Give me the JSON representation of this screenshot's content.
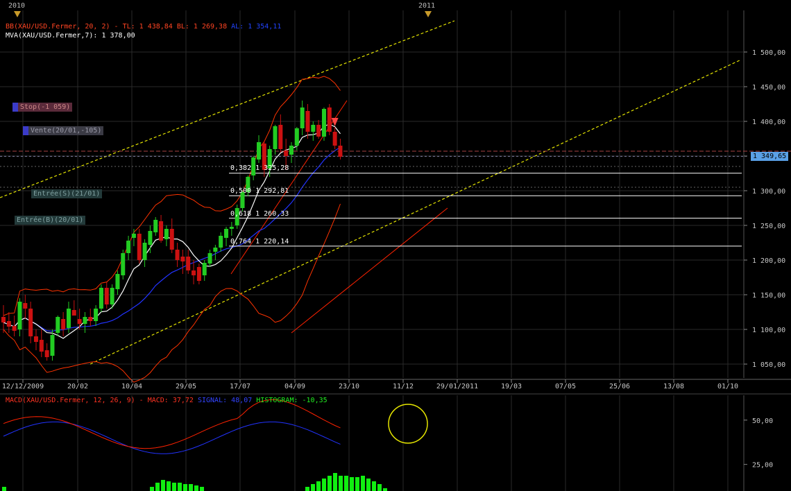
{
  "chart_data": [
    {
      "type": "candlestick",
      "instrument": "XAU/USD",
      "ylim": [
        1030,
        1560
      ],
      "y_ticks": [
        "1 500,00",
        "1 450,00",
        "1 400,00",
        "1 350,00",
        "1 300,00",
        "1 250,00",
        "1 200,00",
        "1 150,00",
        "1 100,00",
        "1 050,00"
      ],
      "y_tick_values": [
        1500,
        1450,
        1400,
        1350,
        1300,
        1250,
        1200,
        1150,
        1100,
        1050
      ],
      "x_ticks": [
        "12/12/2009",
        "20/02",
        "10/04",
        "29/05",
        "17/07",
        "04/09",
        "23/10",
        "11/12",
        "29/01/2011",
        "19/03",
        "07/05",
        "25/06",
        "13/08",
        "01/10"
      ],
      "year_markers": [
        "2010",
        "2011"
      ],
      "last_price_label": "1 349,65",
      "last_price": 1349.65,
      "legend_bb": {
        "prefix": "BB(XAU/USD.Fermer, 20, 2) - TL: 1 438,84  BL: 1 269,38",
        "al": "AL: 1 354,11"
      },
      "legend_mva": "MVA(XAU/USD.Fermer,7): 1 378,00",
      "fib_levels": [
        {
          "label": "0,382 1 325,28",
          "value": 1325.28
        },
        {
          "label": "0,500 1 292,81",
          "value": 1292.81
        },
        {
          "label": "0,618 1 260,33",
          "value": 1260.33
        },
        {
          "label": "0,764 1 220,14",
          "value": 1220.14
        }
      ],
      "orders": [
        {
          "label": "Stop(-1 059)",
          "kind": "stop"
        },
        {
          "label": "Vente(20/01,-105)",
          "kind": "sell"
        },
        {
          "label": "Entrée(S)(21/01)",
          "kind": "entry"
        },
        {
          "label": "Entrée(B)(20/01)",
          "kind": "entry"
        }
      ],
      "candles": [
        {
          "o": 1118,
          "h": 1135,
          "l": 1095,
          "c": 1110
        },
        {
          "o": 1112,
          "h": 1125,
          "l": 1095,
          "c": 1104
        },
        {
          "o": 1105,
          "h": 1120,
          "l": 1090,
          "c": 1098
        },
        {
          "o": 1100,
          "h": 1145,
          "l": 1090,
          "c": 1140
        },
        {
          "o": 1138,
          "h": 1150,
          "l": 1115,
          "c": 1130
        },
        {
          "o": 1130,
          "h": 1140,
          "l": 1080,
          "c": 1090
        },
        {
          "o": 1090,
          "h": 1100,
          "l": 1070,
          "c": 1082
        },
        {
          "o": 1085,
          "h": 1100,
          "l": 1060,
          "c": 1068
        },
        {
          "o": 1070,
          "h": 1080,
          "l": 1055,
          "c": 1060
        },
        {
          "o": 1062,
          "h": 1100,
          "l": 1055,
          "c": 1092
        },
        {
          "o": 1095,
          "h": 1120,
          "l": 1090,
          "c": 1118
        },
        {
          "o": 1115,
          "h": 1125,
          "l": 1090,
          "c": 1100
        },
        {
          "o": 1102,
          "h": 1140,
          "l": 1095,
          "c": 1130
        },
        {
          "o": 1128,
          "h": 1142,
          "l": 1120,
          "c": 1120
        },
        {
          "o": 1115,
          "h": 1130,
          "l": 1100,
          "c": 1108
        },
        {
          "o": 1108,
          "h": 1125,
          "l": 1095,
          "c": 1118
        },
        {
          "o": 1118,
          "h": 1130,
          "l": 1105,
          "c": 1112
        },
        {
          "o": 1112,
          "h": 1135,
          "l": 1105,
          "c": 1130
        },
        {
          "o": 1130,
          "h": 1165,
          "l": 1125,
          "c": 1160
        },
        {
          "o": 1160,
          "h": 1168,
          "l": 1130,
          "c": 1136
        },
        {
          "o": 1136,
          "h": 1165,
          "l": 1130,
          "c": 1160
        },
        {
          "o": 1158,
          "h": 1185,
          "l": 1150,
          "c": 1180
        },
        {
          "o": 1178,
          "h": 1215,
          "l": 1172,
          "c": 1210
        },
        {
          "o": 1210,
          "h": 1235,
          "l": 1200,
          "c": 1228
        },
        {
          "o": 1232,
          "h": 1245,
          "l": 1220,
          "c": 1238
        },
        {
          "o": 1238,
          "h": 1245,
          "l": 1195,
          "c": 1200
        },
        {
          "o": 1200,
          "h": 1230,
          "l": 1190,
          "c": 1225
        },
        {
          "o": 1222,
          "h": 1250,
          "l": 1210,
          "c": 1242
        },
        {
          "o": 1240,
          "h": 1262,
          "l": 1235,
          "c": 1258
        },
        {
          "o": 1256,
          "h": 1265,
          "l": 1225,
          "c": 1228
        },
        {
          "o": 1230,
          "h": 1250,
          "l": 1220,
          "c": 1245
        },
        {
          "o": 1245,
          "h": 1260,
          "l": 1210,
          "c": 1215
        },
        {
          "o": 1215,
          "h": 1225,
          "l": 1190,
          "c": 1200
        },
        {
          "o": 1205,
          "h": 1215,
          "l": 1180,
          "c": 1198
        },
        {
          "o": 1205,
          "h": 1215,
          "l": 1180,
          "c": 1185
        },
        {
          "o": 1185,
          "h": 1200,
          "l": 1165,
          "c": 1178
        },
        {
          "o": 1190,
          "h": 1195,
          "l": 1165,
          "c": 1170
        },
        {
          "o": 1178,
          "h": 1200,
          "l": 1170,
          "c": 1196
        },
        {
          "o": 1195,
          "h": 1215,
          "l": 1190,
          "c": 1210
        },
        {
          "o": 1212,
          "h": 1222,
          "l": 1200,
          "c": 1218
        },
        {
          "o": 1218,
          "h": 1240,
          "l": 1212,
          "c": 1235
        },
        {
          "o": 1232,
          "h": 1248,
          "l": 1220,
          "c": 1245
        },
        {
          "o": 1245,
          "h": 1255,
          "l": 1235,
          "c": 1248
        },
        {
          "o": 1250,
          "h": 1280,
          "l": 1245,
          "c": 1275
        },
        {
          "o": 1275,
          "h": 1300,
          "l": 1270,
          "c": 1298
        },
        {
          "o": 1298,
          "h": 1322,
          "l": 1292,
          "c": 1320
        },
        {
          "o": 1322,
          "h": 1350,
          "l": 1315,
          "c": 1348
        },
        {
          "o": 1345,
          "h": 1380,
          "l": 1340,
          "c": 1370
        },
        {
          "o": 1368,
          "h": 1372,
          "l": 1320,
          "c": 1330
        },
        {
          "o": 1332,
          "h": 1365,
          "l": 1320,
          "c": 1360
        },
        {
          "o": 1360,
          "h": 1395,
          "l": 1352,
          "c": 1393
        },
        {
          "o": 1395,
          "h": 1410,
          "l": 1355,
          "c": 1360
        },
        {
          "o": 1358,
          "h": 1375,
          "l": 1330,
          "c": 1350
        },
        {
          "o": 1352,
          "h": 1370,
          "l": 1340,
          "c": 1365
        },
        {
          "o": 1365,
          "h": 1392,
          "l": 1358,
          "c": 1390
        },
        {
          "o": 1390,
          "h": 1430,
          "l": 1380,
          "c": 1420
        },
        {
          "o": 1415,
          "h": 1425,
          "l": 1375,
          "c": 1385
        },
        {
          "o": 1385,
          "h": 1400,
          "l": 1372,
          "c": 1395
        },
        {
          "o": 1395,
          "h": 1402,
          "l": 1375,
          "c": 1378
        },
        {
          "o": 1378,
          "h": 1420,
          "l": 1372,
          "c": 1418
        },
        {
          "o": 1420,
          "h": 1425,
          "l": 1380,
          "c": 1385
        },
        {
          "o": 1385,
          "h": 1392,
          "l": 1360,
          "c": 1365
        },
        {
          "o": 1365,
          "h": 1375,
          "l": 1345,
          "c": 1349
        }
      ]
    },
    {
      "type": "macd",
      "legend_macd": "MACD(XAU/USD.Fermer, 12, 26, 9) - MACD: 37,72",
      "legend_signal": "SIGNAL: 48,07",
      "legend_hist": "HISTOGRAM: -10,35",
      "y_ticks": [
        "50,00",
        "25,00"
      ],
      "y_tick_values": [
        50,
        25
      ],
      "ylim": [
        10,
        64
      ]
    }
  ],
  "colors": {
    "up": "#22cc22",
    "down": "#cc1111",
    "bb": "#ff3300",
    "bb_mid": "#ffcc33",
    "mva": "#ffffff",
    "blue": "#2233ff",
    "trend": "#e6e600",
    "channel": "#ff2200",
    "grid": "#2a2a2a",
    "axis_text": "#c8c8c8",
    "macd": "#ff2200",
    "signal": "#2233ff",
    "hist": "#11ee11",
    "circle": "#e6e600"
  }
}
